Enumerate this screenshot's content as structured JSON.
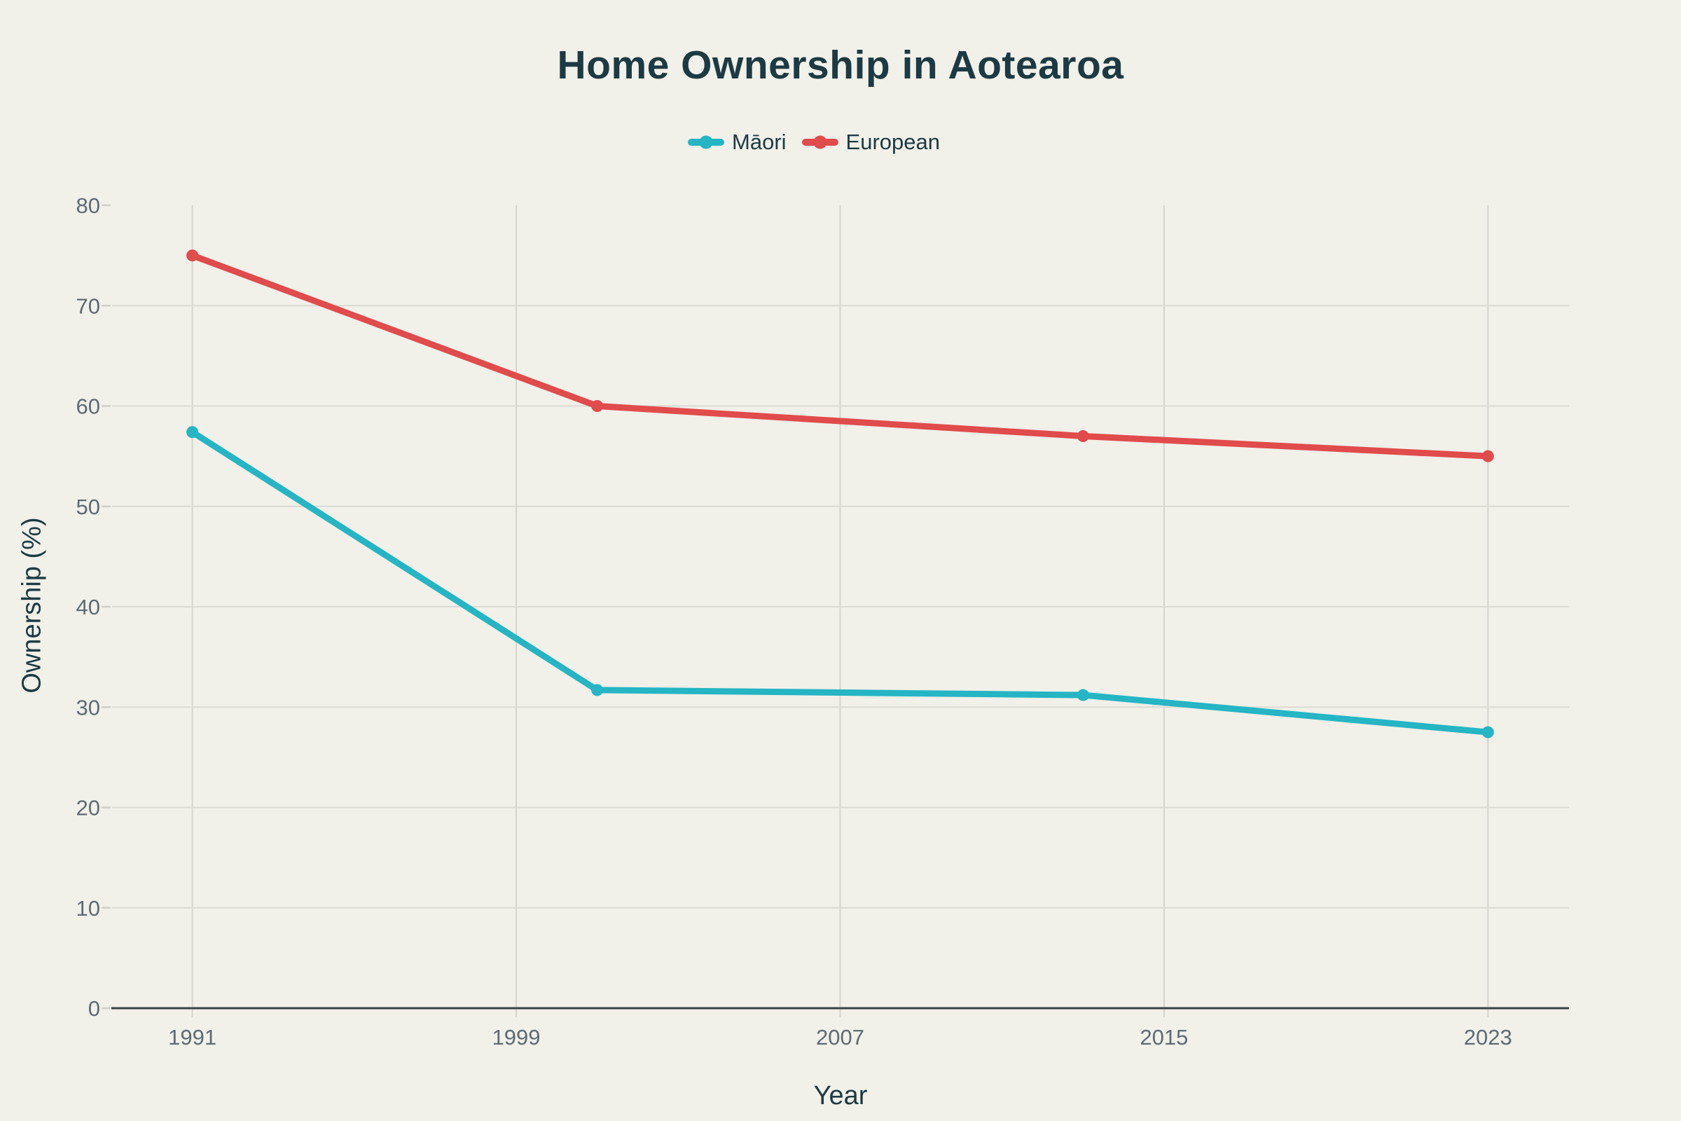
{
  "page": {
    "background": "#f1f0e9"
  },
  "chart_data": {
    "type": "line",
    "title": "Home Ownership in Aotearoa",
    "xlabel": "Year",
    "ylabel": "Ownership (%)",
    "x_ticks": [
      1991,
      1999,
      2007,
      2015,
      2023
    ],
    "y_ticks": [
      0,
      10,
      20,
      30,
      40,
      50,
      60,
      70,
      80
    ],
    "xlim": [
      1989,
      2025
    ],
    "ylim": [
      0,
      80
    ],
    "grid": true,
    "legend_position": "top-center",
    "series": [
      {
        "name": "Māori",
        "color": "#25b5c4",
        "x": [
          1991,
          2001,
          2013,
          2023
        ],
        "values": [
          57.4,
          31.7,
          31.2,
          27.5
        ]
      },
      {
        "name": "European",
        "color": "#e04b4b",
        "x": [
          1991,
          2001,
          2013,
          2023
        ],
        "values": [
          75,
          60,
          57,
          55
        ]
      }
    ]
  },
  "colors": {
    "background": "#f1f0e9",
    "title_text": "#1c3a43",
    "tick_label": "#5d6b74",
    "axis_line": "#3d4044",
    "h_gridline": "#dbdad3",
    "v_gridline": "#d5d4ce",
    "tick_dash": "#cfcec7"
  }
}
